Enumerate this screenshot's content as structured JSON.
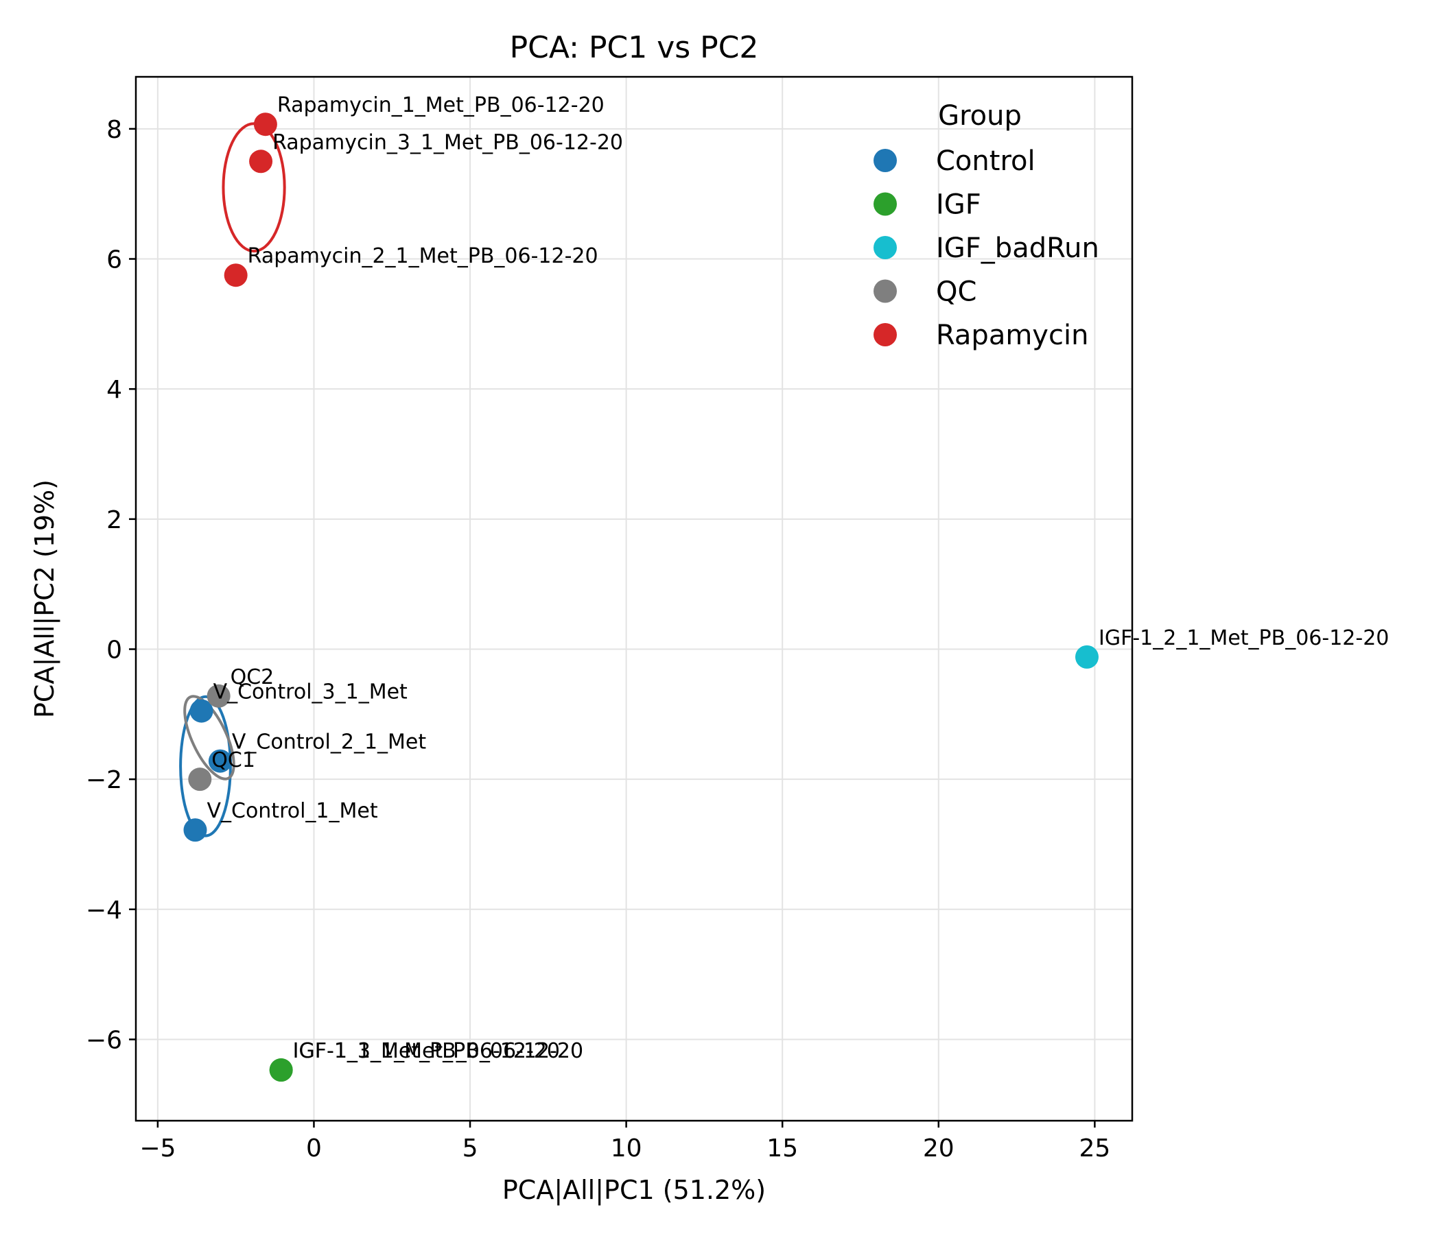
{
  "chart_data": {
    "type": "scatter",
    "title": "PCA: PC1 vs PC2",
    "xlabel": "PCA|All|PC1 (51.2%)",
    "ylabel": "PCA|All|PC2 (19%)",
    "xlim": [
      -5.7,
      26.2
    ],
    "ylim": [
      -7.25,
      8.8
    ],
    "xticks": [
      -5,
      0,
      5,
      10,
      15,
      20,
      25
    ],
    "yticks": [
      -6,
      -4,
      -2,
      0,
      2,
      4,
      6,
      8
    ],
    "xtick_labels": [
      "−5",
      "0",
      "5",
      "10",
      "15",
      "20",
      "25"
    ],
    "ytick_labels": [
      "−6",
      "−4",
      "−2",
      "0",
      "2",
      "4",
      "6",
      "8"
    ],
    "grid": true,
    "legend": {
      "title": "Group",
      "position": "top-right"
    },
    "series": [
      {
        "name": "Control",
        "color": "#1f77b4",
        "points": [
          {
            "x": -3.6,
            "y": -0.95,
            "label": "V_Control_3_1_Met"
          },
          {
            "x": -3.0,
            "y": -1.72,
            "label": "V_Control_2_1_Met"
          },
          {
            "x": -3.8,
            "y": -2.78,
            "label": "V_Control_1_Met"
          }
        ],
        "ellipse": {
          "cx": -3.47,
          "cy": -1.8,
          "rx": 0.8,
          "ry": 1.07
        }
      },
      {
        "name": "IGF",
        "color": "#2ca02c",
        "points": [
          {
            "x": -1.05,
            "y": -6.47,
            "label": "IGF-1_1_Met_PB_06-12-20"
          },
          {
            "x": -1.05,
            "y": -6.47,
            "label": "IGF-1_3_1_Met_PB_06-12-20"
          }
        ]
      },
      {
        "name": "IGF_badRun",
        "color": "#17becf",
        "points": [
          {
            "x": 24.75,
            "y": -0.12,
            "label": "IGF-1_2_1_Met_PB_06-12-20"
          }
        ]
      },
      {
        "name": "QC",
        "color": "#7f7f7f",
        "points": [
          {
            "x": -3.05,
            "y": -0.72,
            "label": "QC2"
          },
          {
            "x": -3.65,
            "y": -2.0,
            "label": "QC1"
          }
        ],
        "ellipse": {
          "cx": -3.35,
          "cy": -1.36,
          "rx": 0.55,
          "ry": 0.69,
          "angle": -25
        }
      },
      {
        "name": "Rapamycin",
        "color": "#d62728",
        "points": [
          {
            "x": -1.55,
            "y": 8.07,
            "label": "Rapamycin_1_Met_PB_06-12-20"
          },
          {
            "x": -1.7,
            "y": 7.5,
            "label": "Rapamycin_3_1_Met_PB_06-12-20"
          },
          {
            "x": -2.5,
            "y": 5.75,
            "label": "Rapamycin_2_1_Met_PB_06-12-20"
          }
        ],
        "ellipse": {
          "cx": -1.92,
          "cy": 7.1,
          "rx": 0.98,
          "ry": 0.98
        }
      }
    ]
  }
}
